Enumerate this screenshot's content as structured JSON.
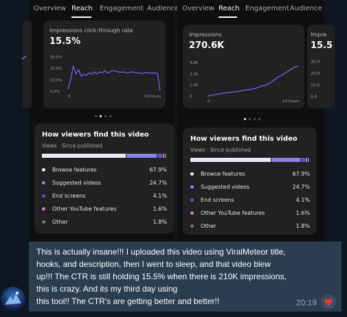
{
  "left_screenshot": {
    "tabs": [
      {
        "label": "Overview",
        "active": false
      },
      {
        "label": "Reach",
        "active": true
      },
      {
        "label": "Engagement",
        "active": false
      },
      {
        "label": "Audience",
        "active": false
      }
    ],
    "metric_card": {
      "label": "Impressions click-through rate",
      "value": "15.5%"
    },
    "chart_data": {
      "type": "line",
      "x_labels": [
        "0",
        "19 hours"
      ],
      "y_ticks": [
        "0.0%",
        "10.0%",
        "20.0%",
        "30.0%"
      ],
      "ylim": [
        0,
        30
      ],
      "series": [
        {
          "values": [
            2,
            10,
            22,
            15,
            19,
            13,
            15,
            14,
            16,
            15,
            17,
            15,
            17,
            16,
            18,
            16,
            17,
            18,
            17.5,
            17,
            16.5,
            17,
            16,
            16,
            17,
            16.5,
            16,
            16.2,
            15.5,
            16,
            16.5,
            15.8,
            16,
            16,
            15.5,
            0.5
          ]
        }
      ]
    },
    "pager": {
      "count": 4,
      "active": 1
    }
  },
  "right_screenshot": {
    "tabs": [
      {
        "label": "Overview",
        "active": false
      },
      {
        "label": "Reach",
        "active": true
      },
      {
        "label": "Engagement",
        "active": false
      },
      {
        "label": "Audience",
        "active": false
      }
    ],
    "metric_card": {
      "label": "Impressions",
      "value": "270.6K"
    },
    "next_card": {
      "label": "Impre",
      "value": "15.5",
      "y_ticks": [
        "30.0",
        "20.0",
        "10.0",
        "0.0"
      ]
    },
    "chart_data": {
      "type": "line",
      "x_labels": [
        "0",
        "19 hours"
      ],
      "y_ticks": [
        "0",
        "1.6K",
        "3.2K",
        "4.8K"
      ],
      "ylim": [
        0,
        4.8
      ],
      "series": [
        {
          "values": [
            0,
            0.15,
            0.3,
            0.4,
            0.5,
            0.6,
            0.7,
            0.85,
            0.95,
            1.1,
            1.4,
            1.6,
            2.0,
            2.6,
            3.0,
            3.5,
            4.0,
            4.3
          ]
        }
      ]
    },
    "pager": {
      "count": 4,
      "active": 0
    }
  },
  "traffic_sources": {
    "title": "How viewers find this video",
    "subtitle": "Views · Since published",
    "items": [
      {
        "name": "Browse features",
        "percent": "67.9%",
        "value": 67.9,
        "color": "#e8eaf6"
      },
      {
        "name": "Suggested videos",
        "percent": "24.7%",
        "value": 24.7,
        "color": "#8c82e6"
      },
      {
        "name": "End screens",
        "percent": "4.1%",
        "value": 4.1,
        "color": "#5c54c8"
      },
      {
        "name": "Other YouTube features",
        "percent": "1.6%",
        "value": 1.6,
        "color": "#d17fc9"
      },
      {
        "name": "Other",
        "percent": "1.8%",
        "value": 1.8,
        "color": "#717171"
      }
    ]
  },
  "message": {
    "lines": [
      "This is actually insane!!! I uploaded this video using ViralMeteor title,",
      "hooks, and description, then I went to sleep, and that video blew",
      "up!!! The CTR is still holding 15.5% when there is 210K impressions,",
      "this is crazy. And its my third day using",
      "this tool!! The CTR's are getting better and better!!"
    ],
    "time": "20:19",
    "reaction": "heart-emoji"
  }
}
